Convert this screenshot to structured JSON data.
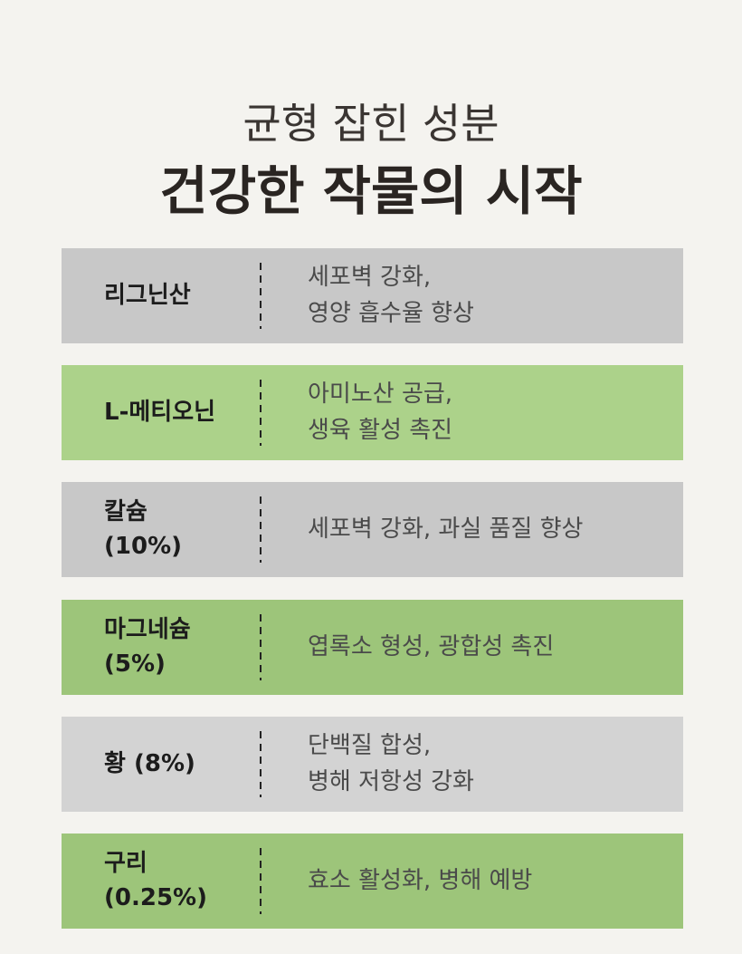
{
  "header": {
    "title": "균형 잡힌 성분",
    "subtitle": "건강한 작물의 시작"
  },
  "rows": [
    {
      "name": [
        "리그닌산"
      ],
      "description": [
        "세포벽 강화,",
        "영양 흡수율 향상"
      ]
    },
    {
      "name": [
        "L-메티오닌"
      ],
      "description": [
        "아미노산 공급,",
        "생육 활성 촉진"
      ]
    },
    {
      "name": [
        "칼슘",
        "(10%)"
      ],
      "description": [
        "세포벽 강화, 과실 품질 향상"
      ]
    },
    {
      "name": [
        "마그네슘",
        "(5%)"
      ],
      "description": [
        "엽록소 형성, 광합성 촉진"
      ]
    },
    {
      "name": [
        "황 (8%)"
      ],
      "description": [
        "단백질 합성,",
        "병해 저항성 강화"
      ]
    },
    {
      "name": [
        "구리",
        "(0.25%)"
      ],
      "description": [
        "효소 활성화, 병해 예방"
      ]
    }
  ]
}
